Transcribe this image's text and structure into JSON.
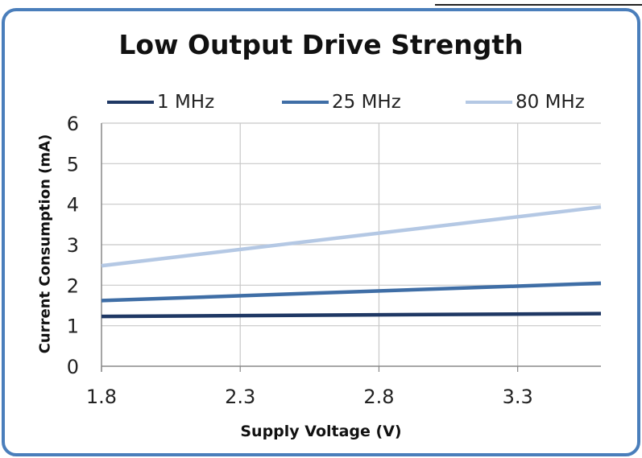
{
  "chart_data": {
    "type": "line",
    "title": "Low Output Drive Strength",
    "xlabel": "Supply Voltage (V)",
    "ylabel": "Current Consumption (mA)",
    "xlim": [
      1.8,
      3.6
    ],
    "ylim": [
      0,
      6
    ],
    "x_ticks": [
      1.8,
      2.3,
      2.8,
      3.3
    ],
    "x_tick_labels": [
      "1.8",
      "2.3",
      "2.8",
      "3.3"
    ],
    "y_ticks": [
      0,
      1,
      2,
      3,
      4,
      5,
      6
    ],
    "y_tick_labels": [
      "0",
      "1",
      "2",
      "3",
      "4",
      "5",
      "6"
    ],
    "grid": true,
    "legend_position": "top",
    "x": [
      1.8,
      3.6
    ],
    "series": [
      {
        "name": "1 MHz",
        "values": [
          1.23,
          1.3
        ],
        "color": "#1f3864"
      },
      {
        "name": "25 MHz",
        "values": [
          1.62,
          2.05
        ],
        "color": "#3f6ea6"
      },
      {
        "name": "80 MHz",
        "values": [
          2.48,
          3.93
        ],
        "color": "#b4c8e4"
      }
    ]
  }
}
